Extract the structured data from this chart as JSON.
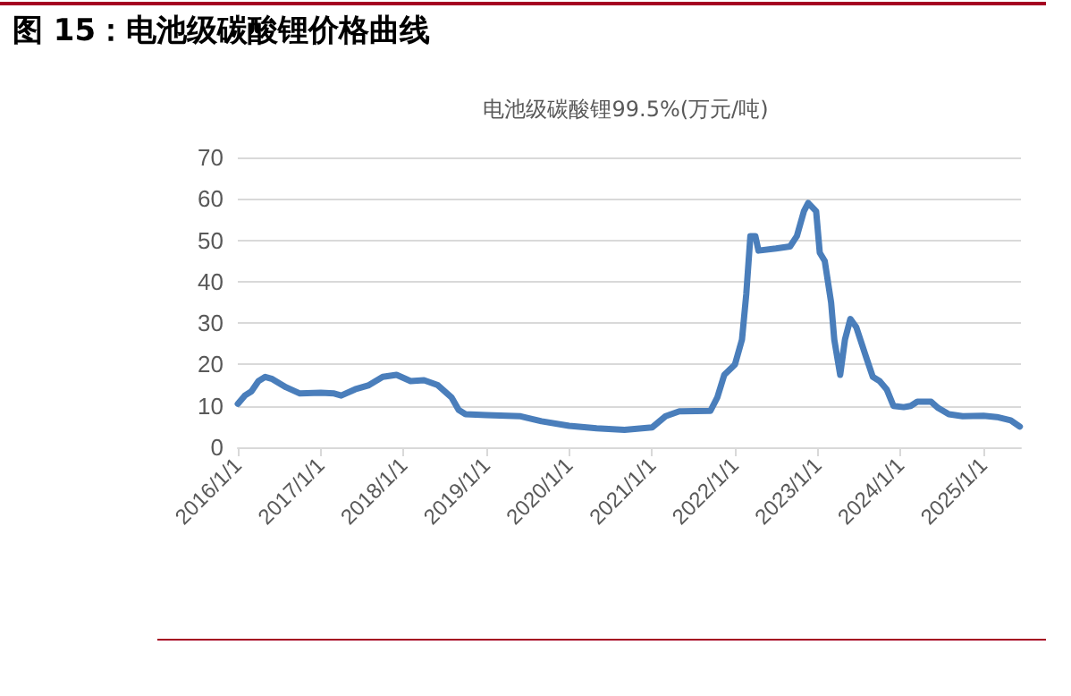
{
  "chart_data": {
    "type": "line",
    "title": "图 15：电池级碳酸锂价格曲线",
    "subtitle": "电池级碳酸锂99.5%(万元/吨)",
    "x": [
      "2016-01-01",
      "2016-02-01",
      "2016-03-01",
      "2016-04-01",
      "2016-05-01",
      "2016-06-01",
      "2016-08-01",
      "2016-10-01",
      "2017-01-01",
      "2017-03-01",
      "2017-04-01",
      "2017-06-01",
      "2017-08-01",
      "2017-10-01",
      "2017-12-01",
      "2018-02-01",
      "2018-04-01",
      "2018-06-01",
      "2018-08-01",
      "2018-09-01",
      "2018-10-01",
      "2019-01-01",
      "2019-06-01",
      "2019-09-01",
      "2020-01-01",
      "2020-05-01",
      "2020-09-01",
      "2021-01-01",
      "2021-03-01",
      "2021-05-01",
      "2021-09-15",
      "2021-10-15",
      "2021-11-15",
      "2022-01-01",
      "2022-02-01",
      "2022-02-20",
      "2022-03-10",
      "2022-04-01",
      "2022-04-15",
      "2022-07-01",
      "2022-09-01",
      "2022-10-01",
      "2022-11-01",
      "2022-11-20",
      "2022-12-25",
      "2023-01-10",
      "2023-02-01",
      "2023-03-01",
      "2023-03-15",
      "2023-04-10",
      "2023-05-01",
      "2023-05-25",
      "2023-06-20",
      "2023-08-01",
      "2023-09-01",
      "2023-10-01",
      "2023-11-01",
      "2023-12-01",
      "2024-01-15",
      "2024-02-15",
      "2024-03-15",
      "2024-05-15",
      "2024-06-15",
      "2024-08-01",
      "2024-10-01",
      "2025-01-01",
      "2025-03-01",
      "2025-05-01",
      "2025-06-10"
    ],
    "series": [
      {
        "color": "#4a7ebb",
        "values": [
          10.5,
          12.5,
          13.5,
          16,
          17,
          16.5,
          14.5,
          13,
          13.2,
          13,
          12.5,
          14,
          15,
          17,
          17.5,
          16,
          16.2,
          15,
          12,
          9,
          8,
          7.8,
          7.5,
          6.3,
          5.2,
          4.6,
          4.2,
          4.8,
          7.5,
          8.7,
          8.8,
          12,
          17.5,
          20,
          26,
          37,
          51,
          51,
          47.5,
          48,
          48.5,
          51,
          57,
          59,
          57,
          47,
          45,
          35,
          26,
          17.5,
          26,
          31,
          29,
          22,
          17,
          16,
          14,
          10,
          9.7,
          10,
          11,
          11,
          9.5,
          8,
          7.5,
          7.6,
          7.3,
          6.5,
          5
        ]
      }
    ],
    "xlim": [
      "2016-01-01",
      "2025-06-15"
    ],
    "xticks": [
      {
        "value": "2016-01-01",
        "label": "2016/1/1"
      },
      {
        "value": "2017-01-01",
        "label": "2017/1/1"
      },
      {
        "value": "2018-01-01",
        "label": "2018/1/1"
      },
      {
        "value": "2019-01-01",
        "label": "2019/1/1"
      },
      {
        "value": "2020-01-01",
        "label": "2020/1/1"
      },
      {
        "value": "2021-01-01",
        "label": "2021/1/1"
      },
      {
        "value": "2022-01-01",
        "label": "2022/1/1"
      },
      {
        "value": "2023-01-01",
        "label": "2023/1/1"
      },
      {
        "value": "2024-01-01",
        "label": "2024/1/1"
      },
      {
        "value": "2025-01-01",
        "label": "2025/1/1"
      }
    ],
    "ylim": [
      0,
      70
    ],
    "yticks": [
      0,
      10,
      20,
      30,
      40,
      50,
      60,
      70
    ],
    "grid": "y",
    "marker": "none",
    "line_style": "solid"
  }
}
